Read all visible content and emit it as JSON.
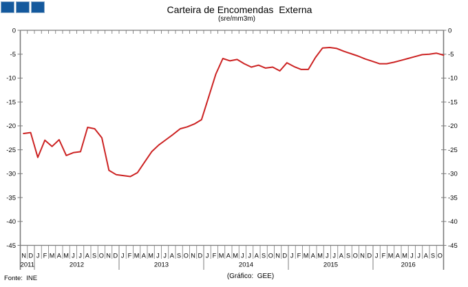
{
  "header": {
    "title": "Carteira de Encomendas  Externa",
    "subtitle": "(sre/mm3m)"
  },
  "footer": {
    "source": "Fonte:  INE",
    "credit": "(Gráfico:  GEE)"
  },
  "chart_data": {
    "type": "line",
    "title": "Carteira de Encomendas  Externa",
    "subtitle": "(sre/mm3m)",
    "line_color": "#CC2222",
    "axis_color": "#7B7B7B",
    "ylim": [
      -45,
      0
    ],
    "yticks": [
      0,
      -5,
      -10,
      -15,
      -20,
      -25,
      -30,
      -35,
      -40,
      -45
    ],
    "grid": false,
    "legend": false,
    "x_labels": [
      "N",
      "D",
      "J",
      "F",
      "M",
      "A",
      "M",
      "J",
      "J",
      "A",
      "S",
      "O",
      "N",
      "D",
      "J",
      "F",
      "M",
      "A",
      "M",
      "J",
      "J",
      "A",
      "S",
      "O",
      "N",
      "D",
      "J",
      "F",
      "M",
      "A",
      "M",
      "J",
      "J",
      "A",
      "S",
      "O",
      "N",
      "D",
      "J",
      "F",
      "M",
      "A",
      "M",
      "J",
      "J",
      "A",
      "S",
      "O",
      "N",
      "D",
      "J",
      "F",
      "M",
      "A",
      "M",
      "J",
      "J",
      "A",
      "S",
      "O"
    ],
    "years": [
      {
        "label": "2011",
        "start": 0,
        "count": 2
      },
      {
        "label": "2012",
        "start": 2,
        "count": 12
      },
      {
        "label": "2013",
        "start": 14,
        "count": 12
      },
      {
        "label": "2014",
        "start": 26,
        "count": 12
      },
      {
        "label": "2015",
        "start": 38,
        "count": 12
      },
      {
        "label": "2016",
        "start": 50,
        "count": 10
      }
    ],
    "series": [
      {
        "name": "Carteira de Encomendas Externa",
        "values": [
          -21.6,
          -21.4,
          -26.6,
          -23.0,
          -24.3,
          -22.9,
          -26.2,
          -25.6,
          -25.4,
          -20.3,
          -20.6,
          -22.5,
          -29.3,
          -30.2,
          -30.4,
          -30.6,
          -29.8,
          -27.6,
          -25.4,
          -24.0,
          -22.9,
          -21.8,
          -20.6,
          -20.2,
          -19.6,
          -18.7,
          -14.0,
          -9.2,
          -5.9,
          -6.4,
          -6.1,
          -7.0,
          -7.7,
          -7.3,
          -7.9,
          -7.7,
          -8.5,
          -6.8,
          -7.6,
          -8.2,
          -8.2,
          -5.7,
          -3.7,
          -3.6,
          -3.8,
          -4.4,
          -4.9,
          -5.4,
          -6.0,
          -6.5,
          -7.0,
          -7.0,
          -6.7,
          -6.3,
          -5.9,
          -5.5,
          -5.1,
          -5.0,
          -4.8,
          -5.2
        ]
      }
    ]
  }
}
